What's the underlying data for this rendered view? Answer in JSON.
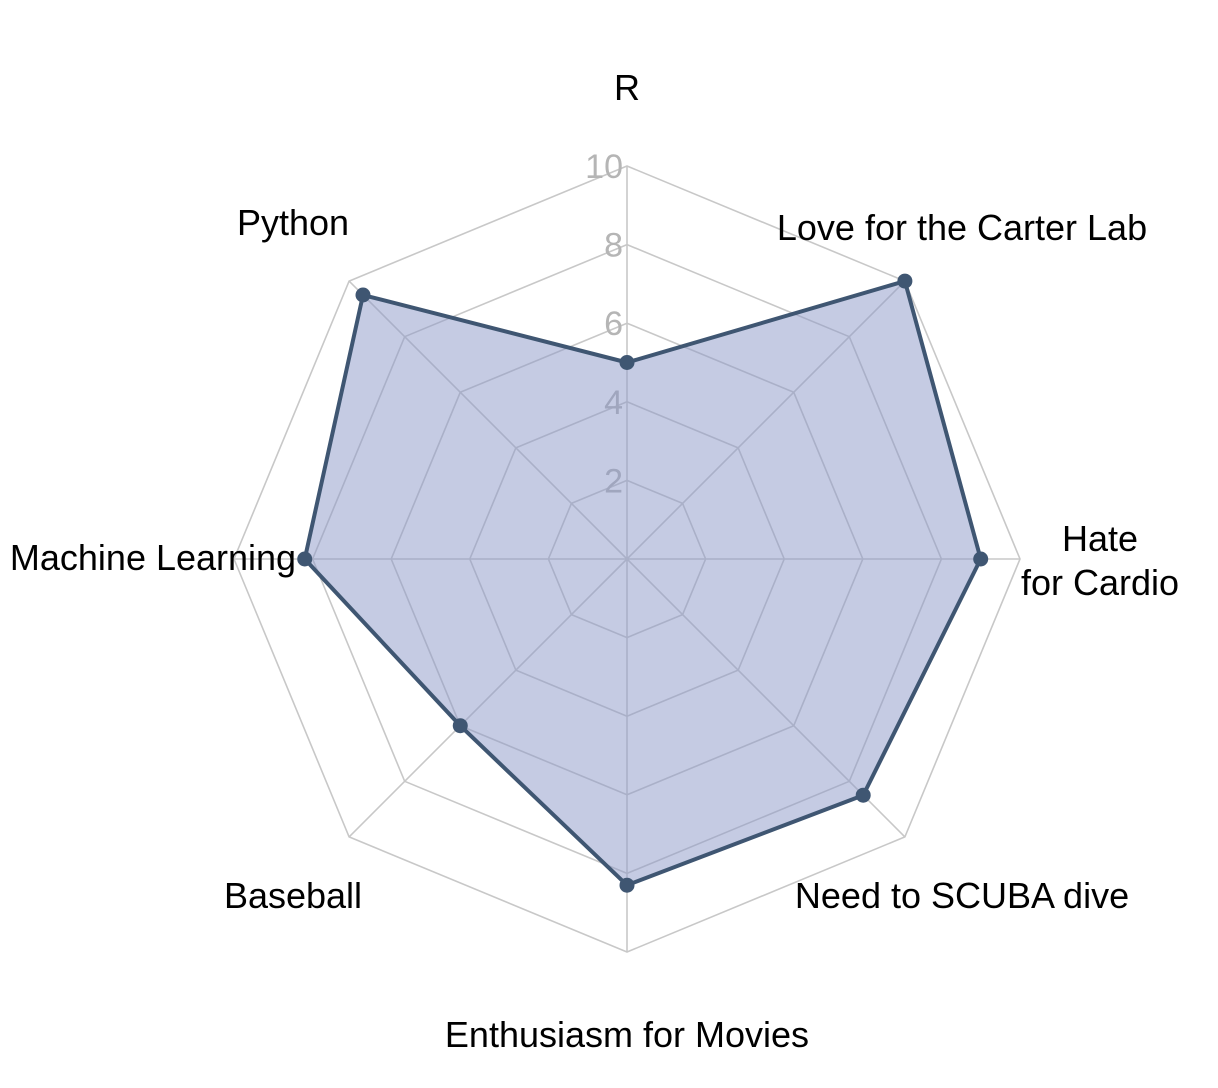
{
  "chart_data": {
    "type": "radar",
    "title": "",
    "axes": [
      {
        "label": "R",
        "lines": [
          "R"
        ]
      },
      {
        "label": "Love for the Carter Lab",
        "lines": [
          "Love for the Carter Lab"
        ]
      },
      {
        "label": "Hate\nfor Cardio",
        "lines": [
          "Hate",
          "for Cardio"
        ]
      },
      {
        "label": "Need to SCUBA dive",
        "lines": [
          "Need to SCUBA dive"
        ]
      },
      {
        "label": "Enthusiasm for Movies",
        "lines": [
          "Enthusiasm for Movies"
        ]
      },
      {
        "label": "Baseball",
        "lines": [
          "Baseball"
        ]
      },
      {
        "label": "Machine Learning",
        "lines": [
          "Machine Learning"
        ]
      },
      {
        "label": "Python",
        "lines": [
          "Python"
        ]
      }
    ],
    "series": [
      {
        "values": [
          5,
          10,
          9,
          8.5,
          8.3,
          6,
          8.2,
          9.5
        ]
      }
    ],
    "rlim": [
      0,
      10
    ],
    "r_ticks": [
      2,
      4,
      6,
      8,
      10
    ],
    "grid": true,
    "legend": "none",
    "colors": {
      "fill": "#8c97c8",
      "line": "#3f5672",
      "grid": "#c8c8c8",
      "tick_text": "#b5b5b5",
      "label_text": "#000000"
    }
  }
}
